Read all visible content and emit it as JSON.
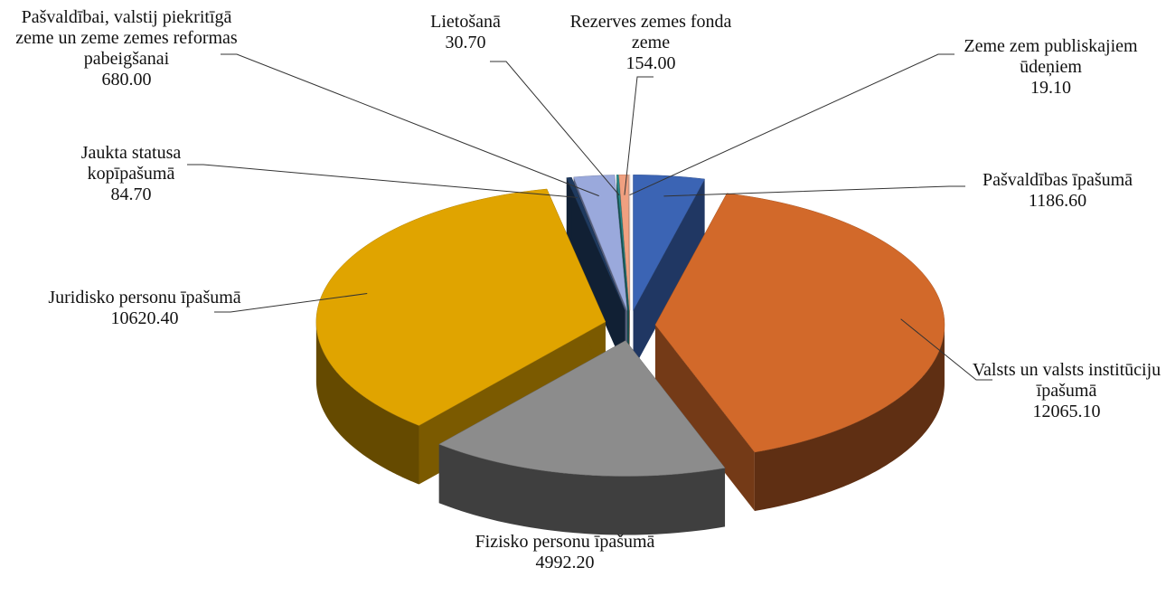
{
  "chart_data": {
    "type": "pie3d",
    "categories": [
      "Pašvaldības īpašumā",
      "Valsts un valsts institūciju īpašumā",
      "Fizisko personu īpašumā",
      "Juridisko personu īpašumā",
      "Jaukta statusa kopīpašumā",
      "Pašvaldībai, valstij piekritīgā zeme un zeme zemes reformas pabeigšanai",
      "Lietošanā",
      "Rezerves zemes fonda zeme",
      "Zeme zem publiskajiem ūdeņiem"
    ],
    "values": [
      1186.6,
      12065.1,
      4992.2,
      10620.4,
      84.7,
      680,
      30.7,
      154,
      19.1
    ],
    "value_labels": [
      "1186.60",
      "12065.10",
      "4992.20",
      "10620.40",
      "84.70",
      "680.00",
      "30.70",
      "154.00",
      "19.10"
    ],
    "colors": [
      "#3b64b4",
      "#d2692a",
      "#8c8c8c",
      "#e0a400",
      "#1f3a5f",
      "#9aa9dc",
      "#2a8c8c",
      "#f0a080",
      "#f5d6c8"
    ]
  }
}
